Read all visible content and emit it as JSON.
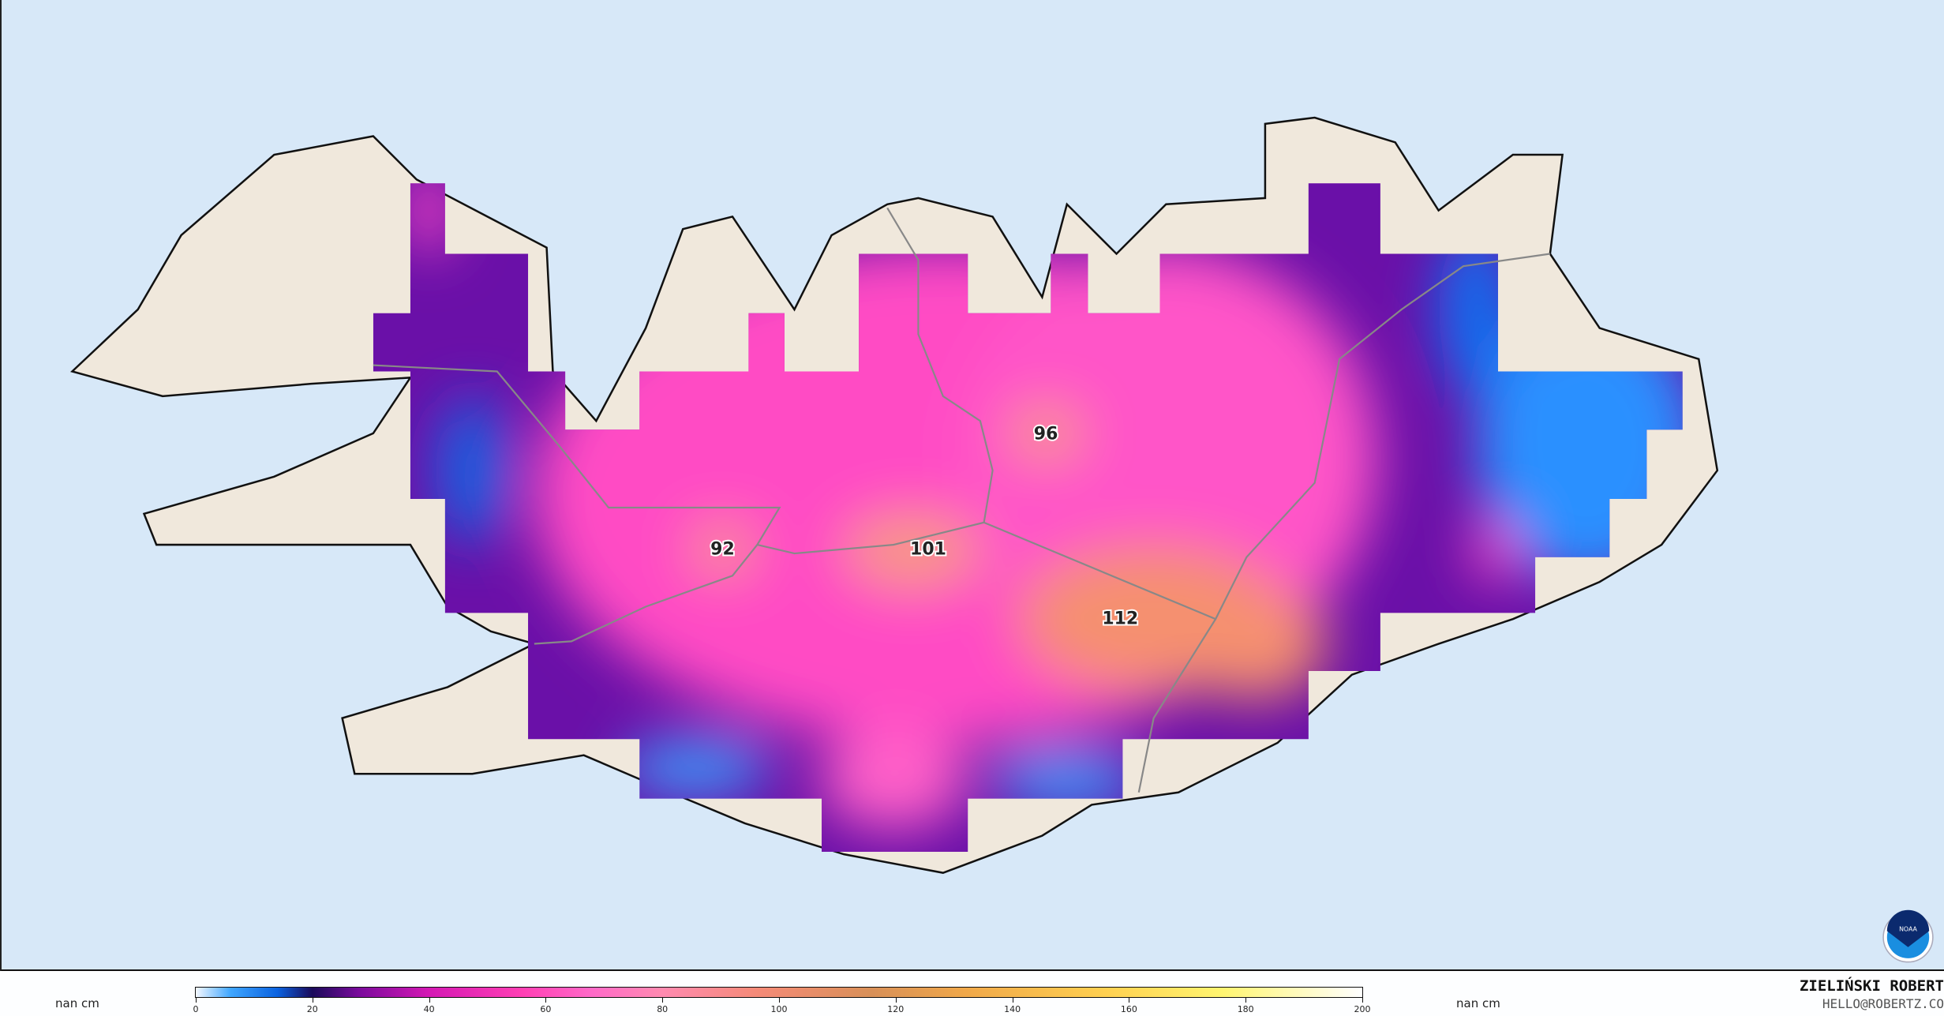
{
  "map": {
    "labels": [
      {
        "text": "96"
      },
      {
        "text": "92"
      },
      {
        "text": "101"
      },
      {
        "text": "112"
      }
    ],
    "colors": {
      "ocean": "#d7e8f8",
      "land": "#f0e8dc",
      "coast": "#111111",
      "boundary": "#888888"
    },
    "logo": "NOAA"
  },
  "colorbar": {
    "unit_left": "nan cm",
    "unit_right": "nan cm",
    "ticks": [
      "0",
      "20",
      "40",
      "60",
      "80",
      "100",
      "120",
      "140",
      "160",
      "180",
      "200"
    ],
    "range": [
      0,
      200
    ]
  },
  "credit": {
    "author": "ZIELIŃSKI ROBERT",
    "email": "HELLO@ROBERTZ.CO"
  }
}
